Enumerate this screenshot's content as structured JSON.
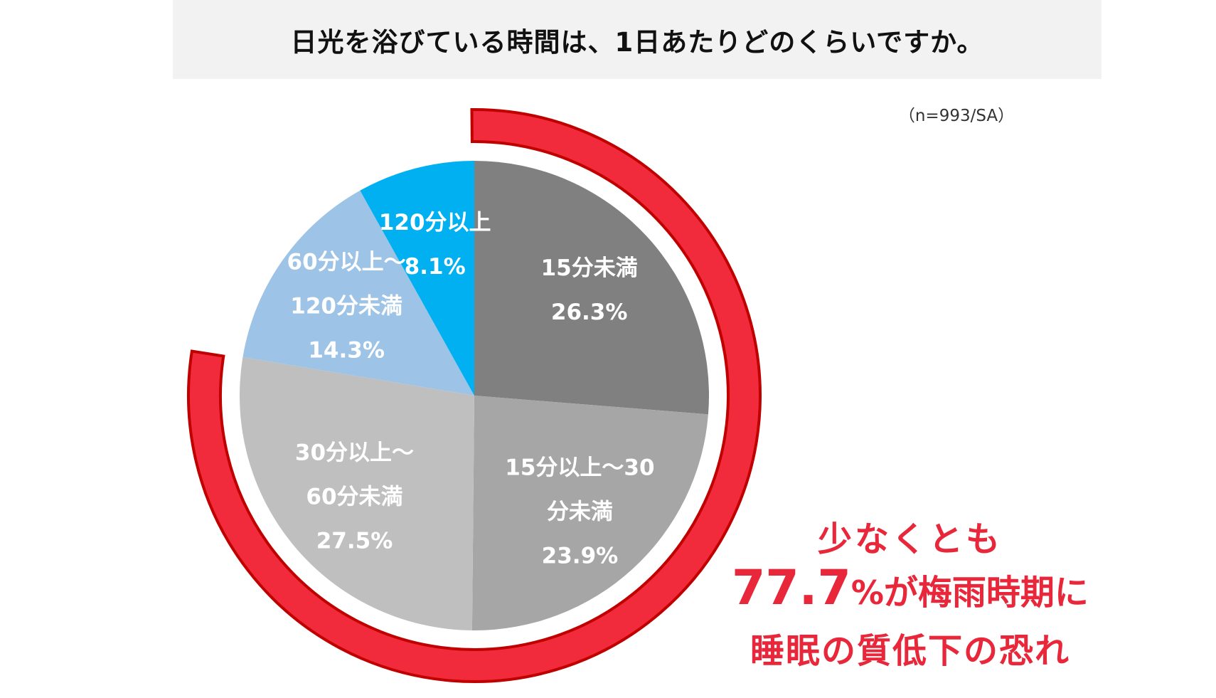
{
  "title": "日光を浴びている時間は、1日あたりどのくらいですか。",
  "sample_note": "（n=993/SA）",
  "chart_data": {
    "type": "pie",
    "title": "日光を浴びている時間は、1日あたりどのくらいですか。",
    "start": "12 o'clock",
    "direction": "clockwise",
    "slices": [
      {
        "label_lines": [
          "15分未満"
        ],
        "value": 26.3,
        "value_label": "26.3%",
        "color": "#808080"
      },
      {
        "label_lines": [
          "15分以上～30",
          "分未満"
        ],
        "value": 23.9,
        "value_label": "23.9%",
        "color": "#a6a6a6"
      },
      {
        "label_lines": [
          "30分以上～",
          "60分未満"
        ],
        "value": 27.5,
        "value_label": "27.5%",
        "color": "#bfbfbf"
      },
      {
        "label_lines": [
          "60分以上～",
          "120分未満"
        ],
        "value": 14.3,
        "value_label": "14.3%",
        "color": "#9dc3e6"
      },
      {
        "label_lines": [
          "120分以上"
        ],
        "value": 8.1,
        "value_label": "8.1%",
        "color": "#00b0f0"
      }
    ],
    "highlight_arc": {
      "covers": [
        "15分未満",
        "15分以上～30分未満",
        "30分以上～60分未満"
      ],
      "color": "#f12b3b",
      "outline_color": "#c00000"
    }
  },
  "callout": {
    "line1": "少なくとも",
    "number": "77.7",
    "unit": "%",
    "line2_rest": "が梅雨時期に",
    "line3": "睡眠の質低下の恐れ",
    "color": "#e8283a"
  }
}
